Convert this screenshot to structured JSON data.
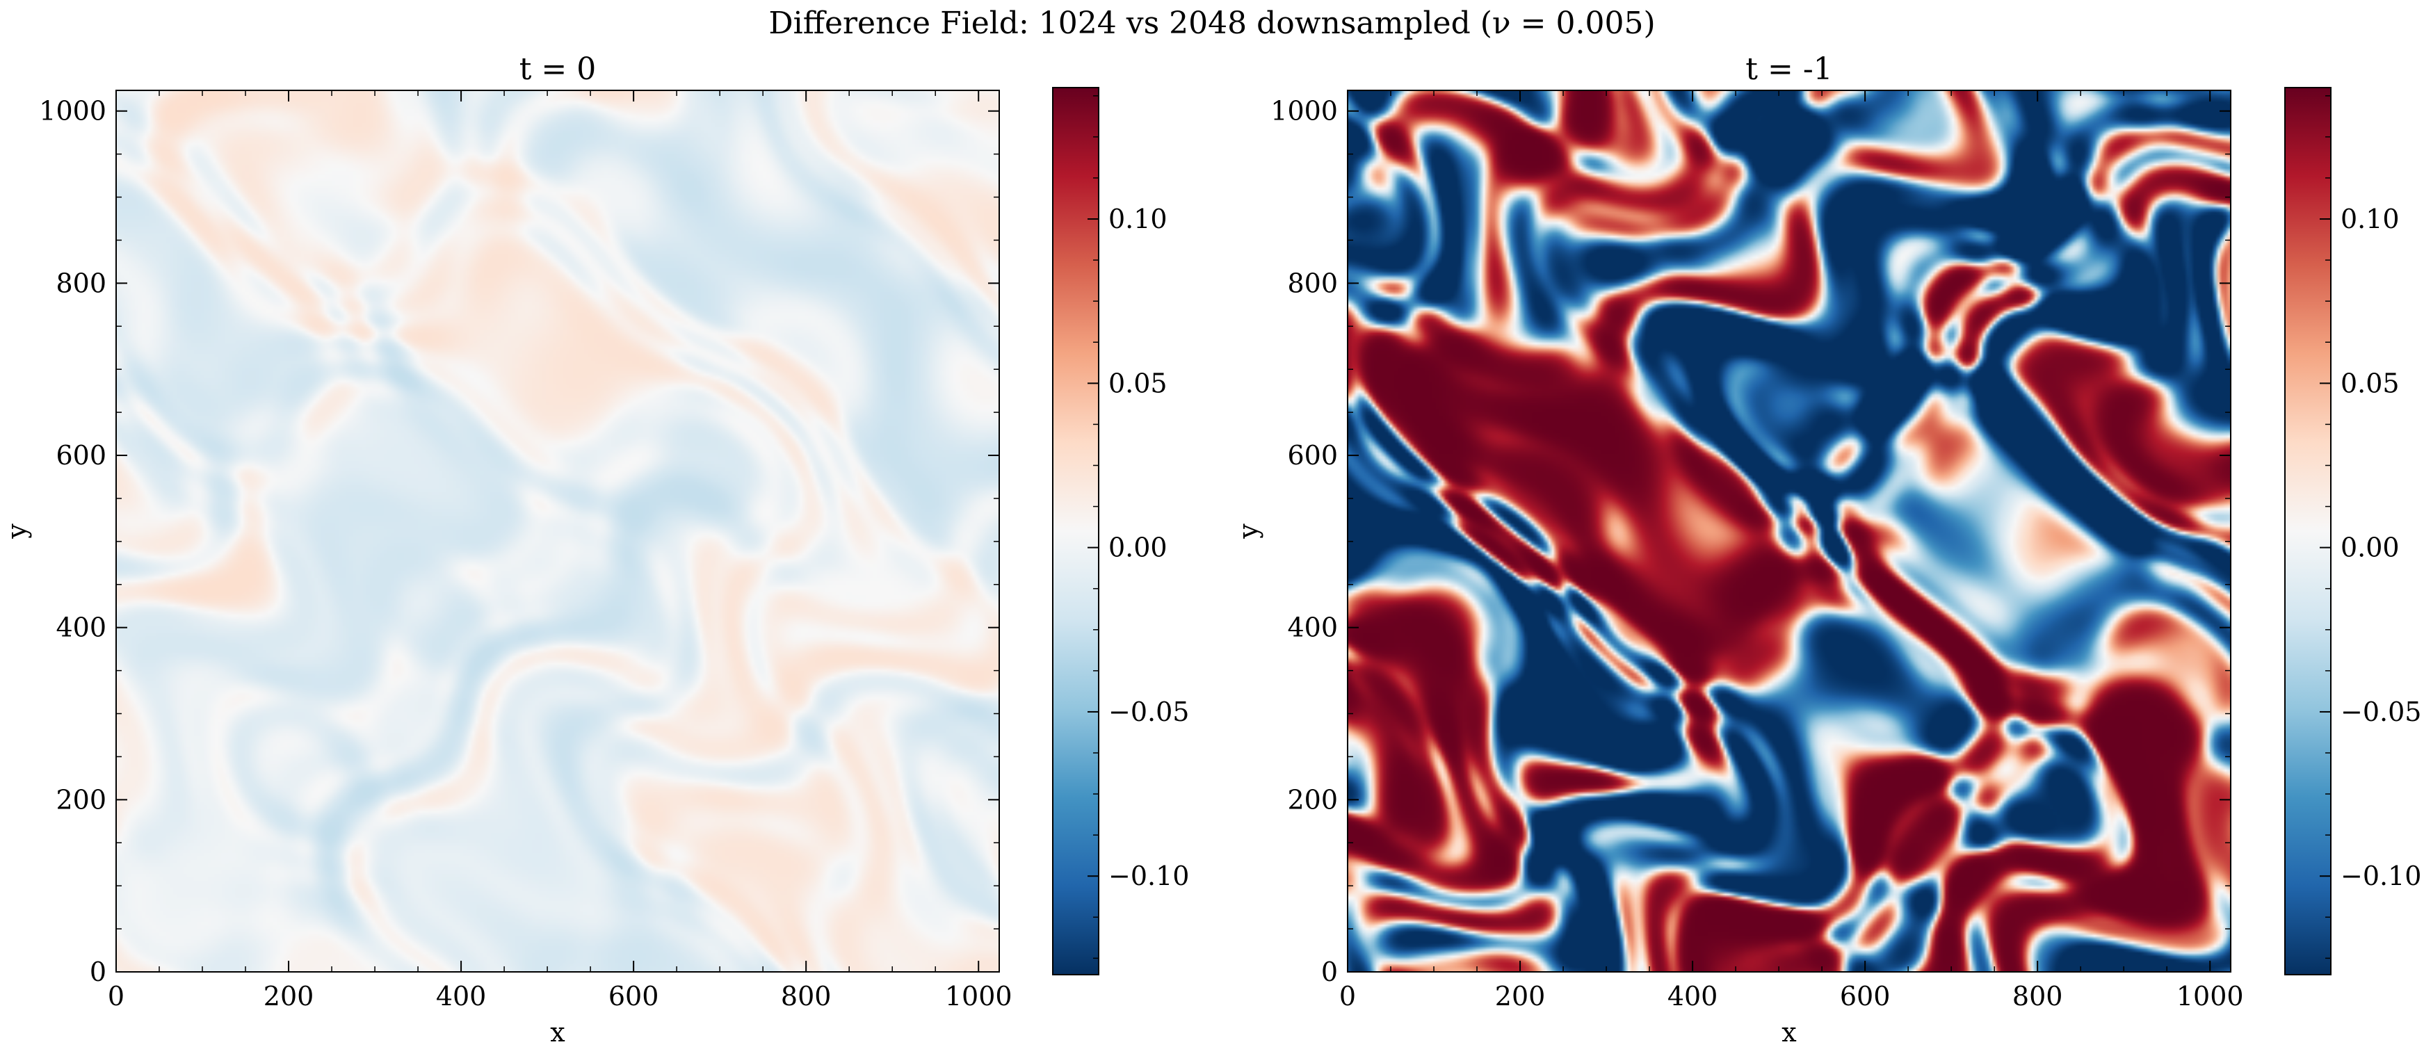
{
  "figure_title": "Difference Field: 1024 vs 2048 downsampled (ν = 0.005)",
  "chart_data": [
    {
      "type": "heatmap",
      "title": "t = 0",
      "xlabel": "x",
      "ylabel": "y",
      "xlim": [
        0,
        1024
      ],
      "ylim": [
        0,
        1024
      ],
      "xticks": [
        0,
        200,
        400,
        600,
        800,
        1000
      ],
      "yticks": [
        0,
        200,
        400,
        600,
        800,
        1000
      ],
      "colormap": "RdBu_r",
      "colorbar": {
        "vmin": -0.13,
        "vmax": 0.14,
        "ticks": [
          -0.1,
          -0.05,
          0.0,
          0.05,
          0.1
        ],
        "tick_labels": [
          "−0.10",
          "−0.05",
          "0.00",
          "0.05",
          "0.10"
        ]
      },
      "field_amplitude": 0.03
    },
    {
      "type": "heatmap",
      "title": "t = -1",
      "xlabel": "x",
      "ylabel": "y",
      "xlim": [
        0,
        1024
      ],
      "ylim": [
        0,
        1024
      ],
      "xticks": [
        0,
        200,
        400,
        600,
        800,
        1000
      ],
      "yticks": [
        0,
        200,
        400,
        600,
        800,
        1000
      ],
      "colormap": "RdBu_r",
      "colorbar": {
        "vmin": -0.13,
        "vmax": 0.14,
        "ticks": [
          -0.1,
          -0.05,
          0.0,
          0.05,
          0.1
        ],
        "tick_labels": [
          "−0.10",
          "−0.05",
          "0.00",
          "0.05",
          "0.10"
        ]
      },
      "field_amplitude": 0.14
    }
  ],
  "colors": {
    "colormap_stops": [
      "#053061",
      "#2166ac",
      "#4393c3",
      "#92c5de",
      "#d1e5f0",
      "#f7f7f7",
      "#fddbc7",
      "#f4a582",
      "#d6604d",
      "#b2182b",
      "#67001f"
    ]
  }
}
